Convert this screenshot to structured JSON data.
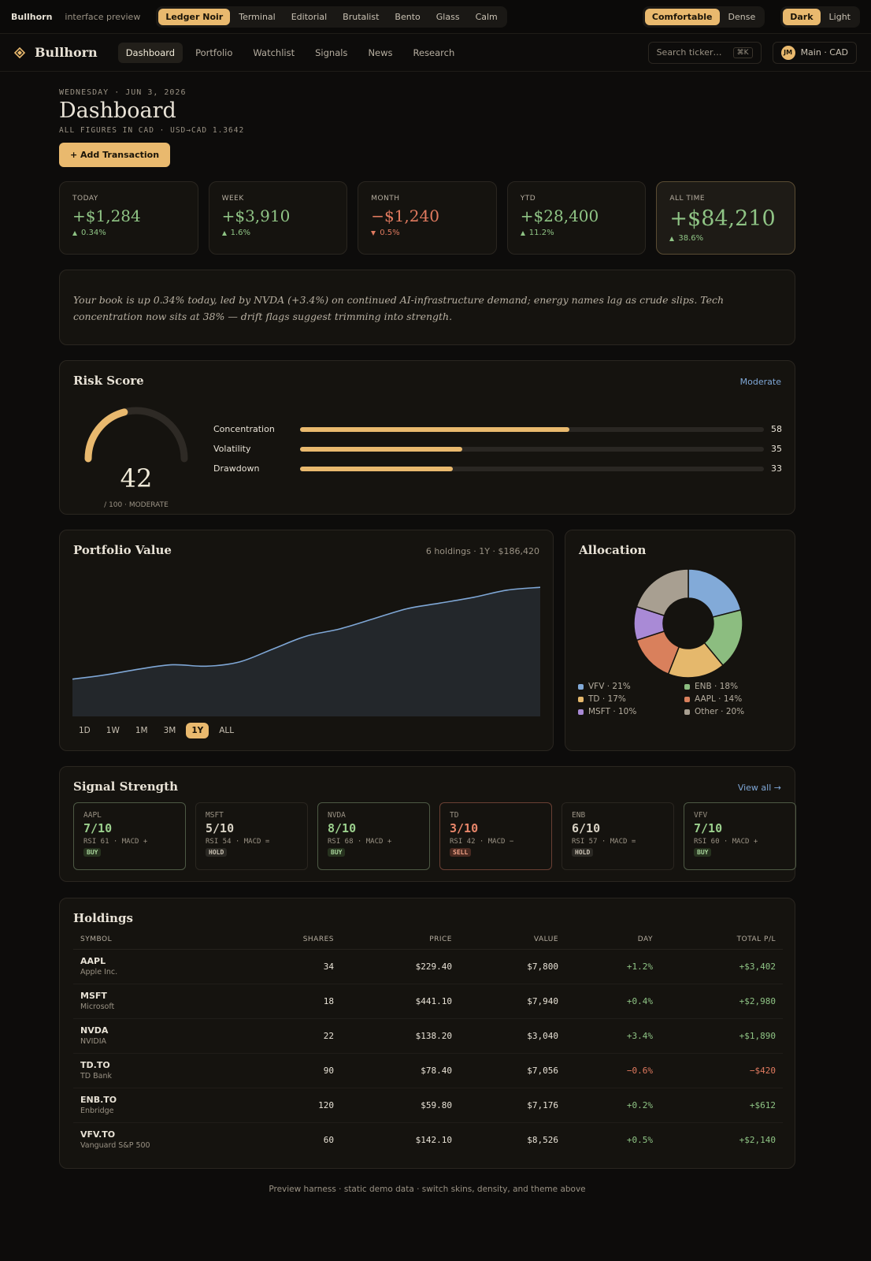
{
  "topbar": {
    "brand": "Bullhorn",
    "subtitle": "interface preview",
    "skins": [
      "Ledger Noir",
      "Terminal",
      "Editorial",
      "Brutalist",
      "Bento",
      "Glass",
      "Calm"
    ],
    "active_skin": 0,
    "density": [
      "Comfortable",
      "Dense"
    ],
    "active_density": 0,
    "theme": [
      "Dark",
      "Light"
    ],
    "active_theme": 0
  },
  "nav": {
    "brand": "Bullhorn",
    "links": [
      "Dashboard",
      "Portfolio",
      "Watchlist",
      "Signals",
      "News",
      "Research"
    ],
    "active_link": 0,
    "search_placeholder": "Search ticker…",
    "shortcut": "⌘K",
    "avatar": "JM",
    "account": "Main · CAD"
  },
  "header": {
    "date": "WEDNESDAY · JUN 3, 2026",
    "title": "Dashboard",
    "note": "ALL FIGURES IN CAD · USD→CAD 1.3642",
    "button": "+ Add Transaction"
  },
  "stats": [
    {
      "label": "TODAY",
      "value": "+$1,284",
      "change": "0.34%",
      "direction": "up"
    },
    {
      "label": "WEEK",
      "value": "+$3,910",
      "change": "1.6%",
      "direction": "up"
    },
    {
      "label": "MONTH",
      "value": "−$1,240",
      "change": "0.5%",
      "direction": "down"
    },
    {
      "label": "YTD",
      "value": "+$28,400",
      "change": "11.2%",
      "direction": "up"
    },
    {
      "label": "ALL TIME",
      "value": "+$84,210",
      "change": "38.6%",
      "direction": "up",
      "featured": true
    }
  ],
  "summary": "Your book is up 0.34% today, led by NVDA (+3.4%) on continued AI-infrastructure demand; energy names lag as crude slips. Tech concentration now sits at 38% — drift flags suggest trimming into strength.",
  "risk": {
    "title": "Risk Score",
    "level": "Moderate",
    "score": 42,
    "range": [
      0,
      100
    ],
    "caption": "/ 100 · MODERATE",
    "factors": [
      {
        "label": "Concentration",
        "value": 58
      },
      {
        "label": "Volatility",
        "value": 35
      },
      {
        "label": "Drawdown",
        "value": 33
      }
    ]
  },
  "portfolio": {
    "title": "Portfolio Value",
    "meta": "6 holdings · 1Y · $186,420",
    "chart": {
      "type": "area",
      "values": [
        26,
        29,
        33,
        36,
        35,
        38,
        47,
        56,
        61,
        68,
        75,
        79,
        83,
        88,
        90
      ],
      "ylim": [
        0,
        100
      ],
      "color": "#7fa7d6"
    },
    "ranges": [
      "1D",
      "1W",
      "1M",
      "3M",
      "1Y",
      "ALL"
    ],
    "active_range": 4
  },
  "allocation": {
    "title": "Allocation",
    "chart": {
      "type": "pie",
      "items": [
        {
          "label": "VFV · 21%",
          "value": 21,
          "color": "#82aad8"
        },
        {
          "label": "ENB · 18%",
          "value": 18,
          "color": "#8cbd80"
        },
        {
          "label": "TD · 17%",
          "value": 17,
          "color": "#e5b86c"
        },
        {
          "label": "AAPL · 14%",
          "value": 14,
          "color": "#d9805c"
        },
        {
          "label": "MSFT · 10%",
          "value": 10,
          "color": "#a98ad6"
        },
        {
          "label": "Other · 20%",
          "value": 20,
          "color": "#a89f91"
        }
      ]
    }
  },
  "signals": {
    "title": "Signal Strength",
    "link": "View all →",
    "cards": [
      {
        "ticker": "AAPL",
        "score": "7/10",
        "detail": "RSI 61 · MACD +",
        "badge": "BUY",
        "tone": "buy"
      },
      {
        "ticker": "MSFT",
        "score": "5/10",
        "detail": "RSI 54 · MACD =",
        "badge": "HOLD",
        "tone": "hold"
      },
      {
        "ticker": "NVDA",
        "score": "8/10",
        "detail": "RSI 68 · MACD +",
        "badge": "BUY",
        "tone": "buy"
      },
      {
        "ticker": "TD",
        "score": "3/10",
        "detail": "RSI 42 · MACD −",
        "badge": "SELL",
        "tone": "sell"
      },
      {
        "ticker": "ENB",
        "score": "6/10",
        "detail": "RSI 57 · MACD =",
        "badge": "HOLD",
        "tone": "hold"
      },
      {
        "ticker": "VFV",
        "score": "7/10",
        "detail": "RSI 60 · MACD +",
        "badge": "BUY",
        "tone": "buy"
      }
    ]
  },
  "holdings": {
    "title": "Holdings",
    "columns": [
      "SYMBOL",
      "SHARES",
      "PRICE",
      "VALUE",
      "DAY",
      "TOTAL P/L"
    ],
    "rows": [
      {
        "symbol": "AAPL",
        "name": "Apple Inc.",
        "shares": 34,
        "price": "$229.40",
        "value": "$7,800",
        "day": "+1.2%",
        "total": "+$3,402",
        "trend": "up"
      },
      {
        "symbol": "MSFT",
        "name": "Microsoft",
        "shares": 18,
        "price": "$441.10",
        "value": "$7,940",
        "day": "+0.4%",
        "total": "+$2,980",
        "trend": "up"
      },
      {
        "symbol": "NVDA",
        "name": "NVIDIA",
        "shares": 22,
        "price": "$138.20",
        "value": "$3,040",
        "day": "+3.4%",
        "total": "+$1,890",
        "trend": "up"
      },
      {
        "symbol": "TD.TO",
        "name": "TD Bank",
        "shares": 90,
        "price": "$78.40",
        "value": "$7,056",
        "day": "−0.6%",
        "total": "−$420",
        "trend": "down"
      },
      {
        "symbol": "ENB.TO",
        "name": "Enbridge",
        "shares": 120,
        "price": "$59.80",
        "value": "$7,176",
        "day": "+0.2%",
        "total": "+$612",
        "trend": "up"
      },
      {
        "symbol": "VFV.TO",
        "name": "Vanguard S&P 500",
        "shares": 60,
        "price": "$142.10",
        "value": "$8,526",
        "day": "+0.5%",
        "total": "+$2,140",
        "trend": "up"
      }
    ]
  },
  "footer": "Preview harness · static demo data · switch skins, density, and theme above"
}
